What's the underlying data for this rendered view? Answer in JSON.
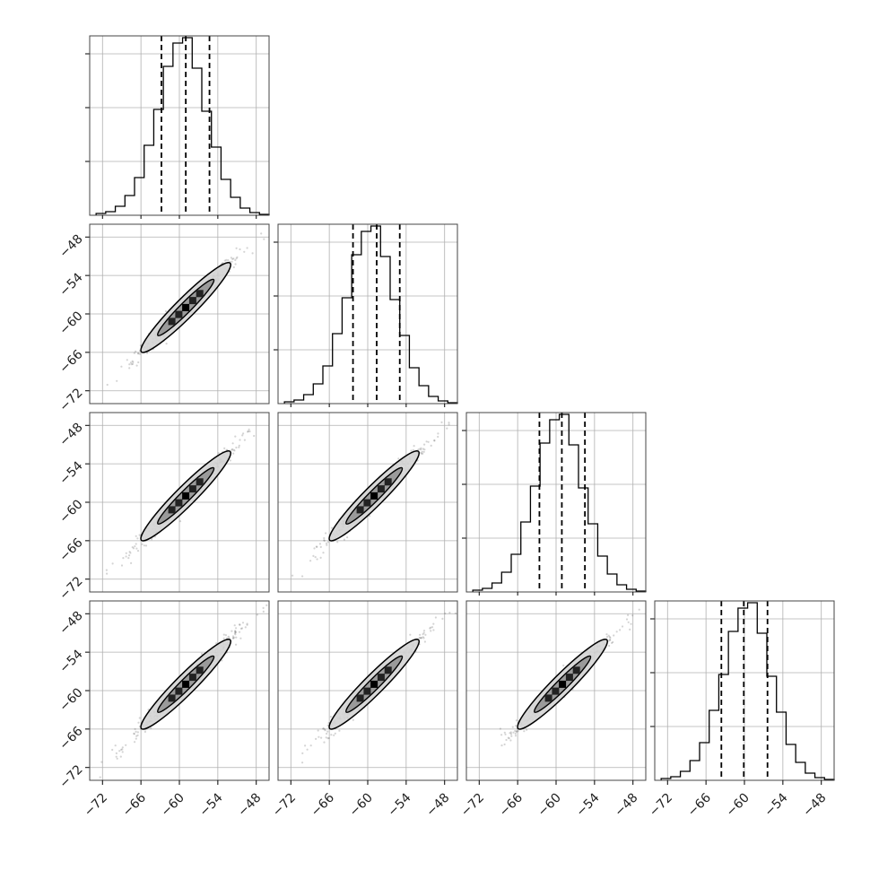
{
  "chart_data": {
    "type": "corner",
    "title": "",
    "n_params": 4,
    "param_labels": [
      "",
      "",
      "",
      ""
    ],
    "axis_range": [
      -74,
      -46
    ],
    "ticks": [
      -72,
      -66,
      -60,
      -54,
      -48
    ],
    "tick_labels": [
      "−72",
      "−66",
      "−60",
      "−54",
      "−48"
    ],
    "grid": true,
    "histogram_bins": [
      -73,
      -71.5,
      -70,
      -68.5,
      -67,
      -65.5,
      -64,
      -62.5,
      -61,
      -59.5,
      -58,
      -56.5,
      -55,
      -53.5,
      -52,
      -50.5,
      -49,
      -47.5,
      -46
    ],
    "histogram_counts": [
      0.01,
      0.02,
      0.05,
      0.11,
      0.21,
      0.39,
      0.59,
      0.83,
      0.96,
      0.99,
      0.82,
      0.58,
      0.38,
      0.2,
      0.1,
      0.04,
      0.015,
      0.005
    ],
    "quantiles": {
      "param_1": [
        -62.8,
        -59.0,
        -55.3
      ],
      "param_2": [
        -62.3,
        -58.6,
        -55.0
      ],
      "param_3": [
        -62.6,
        -59.1,
        -55.5
      ],
      "param_4": [
        -63.6,
        -60.1,
        -56.4
      ]
    },
    "correlation": "strong positive, slope ≈ 1",
    "colors": {
      "line": "#000000",
      "grid": "#b0b0b0",
      "samples": "#555555",
      "contour_fill": "#d4d4d4"
    }
  }
}
